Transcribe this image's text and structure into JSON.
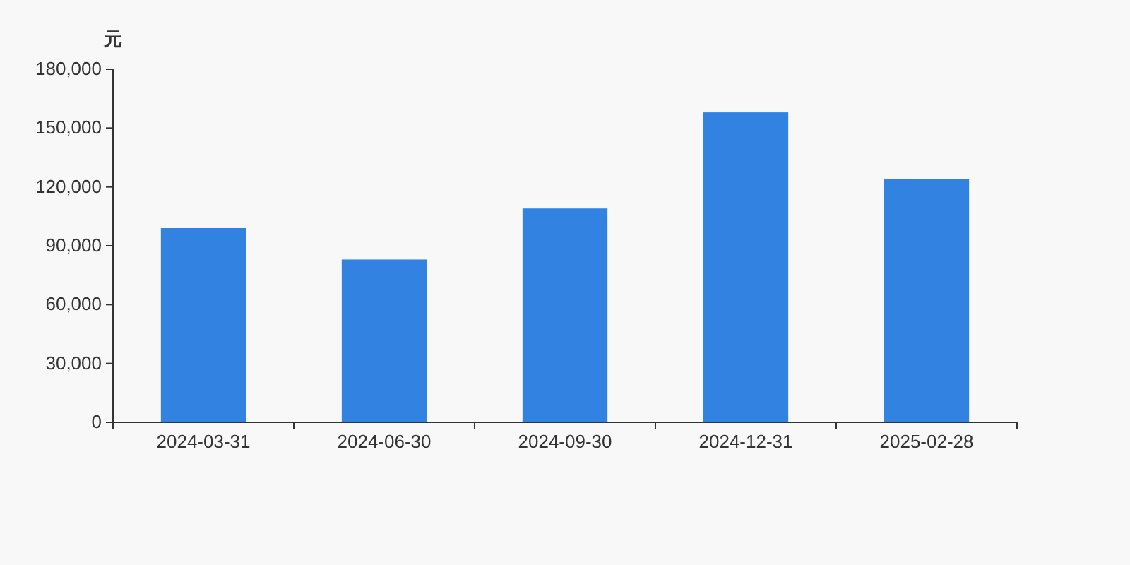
{
  "chart_data": {
    "type": "bar",
    "ylabel": "元",
    "categories": [
      "2024-03-31",
      "2024-06-30",
      "2024-09-30",
      "2024-12-31",
      "2025-02-28"
    ],
    "values": [
      99000,
      83000,
      109000,
      158000,
      124000
    ],
    "color": "#3282e2",
    "ylim": [
      0,
      180000
    ],
    "yticks": [
      {
        "value": 0,
        "label": "0"
      },
      {
        "value": 30000,
        "label": "30,000"
      },
      {
        "value": 60000,
        "label": "60,000"
      },
      {
        "value": 90000,
        "label": "90,000"
      },
      {
        "value": 120000,
        "label": "120,000"
      },
      {
        "value": 150000,
        "label": "150,000"
      },
      {
        "value": 180000,
        "label": "180,000"
      }
    ],
    "grid": false
  }
}
